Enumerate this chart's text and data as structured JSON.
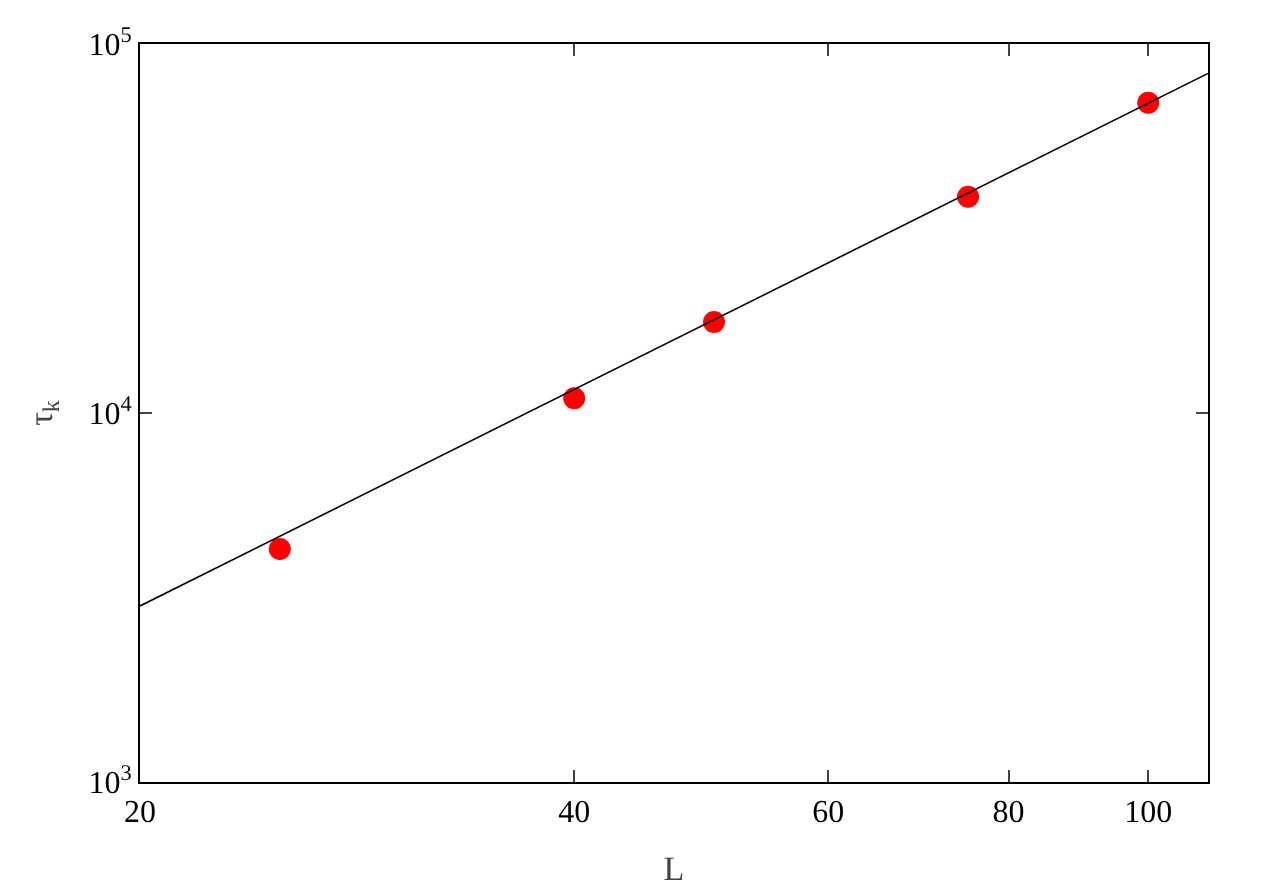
{
  "chart_data": {
    "type": "scatter",
    "xlabel": "L",
    "ylabel": "τ$_{k}$",
    "log": "xy",
    "grid": false,
    "xlim": [
      20,
      110
    ],
    "xticks": [
      20,
      40,
      60,
      80,
      100
    ],
    "ylim": [
      1000,
      100000
    ],
    "yticks": [
      {
        "value": 1000,
        "label": "10$^{3}$"
      },
      {
        "value": 10000,
        "label": "10$^{4}$"
      },
      {
        "value": 100000,
        "label": "10$^{5}$"
      }
    ],
    "series": [
      {
        "type": "scatter",
        "marker": "circle",
        "color": "#ff0000",
        "x": [
          25,
          40,
          50,
          75,
          100
        ],
        "values": [
          4280,
          10960,
          17650,
          38550,
          69300
        ]
      },
      {
        "type": "line",
        "color": "#000000",
        "marker": "none",
        "line_style": "solid",
        "x": [
          20,
          110
        ],
        "values": [
          3000,
          83200
        ]
      }
    ]
  }
}
